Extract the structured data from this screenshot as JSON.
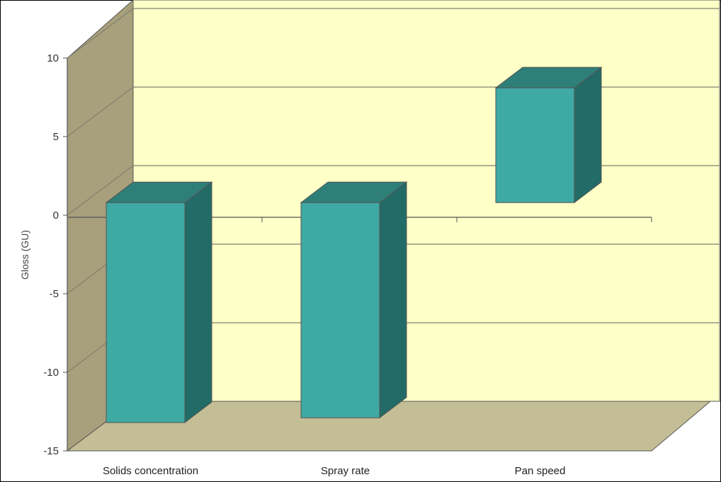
{
  "chart_data": {
    "type": "bar",
    "subtype": "3d-floating-bar",
    "ylabel": "Gloss (GU)",
    "xlabel": "",
    "categories": [
      "Solids concentration",
      "Spray rate",
      "Pan speed"
    ],
    "series": [
      {
        "bar_bottom": [
          -13.2,
          -12.9,
          0.8
        ],
        "bar_top": [
          0.8,
          0.8,
          8.1
        ]
      }
    ],
    "ylim": [
      -15,
      10
    ],
    "yticks": [
      -15,
      -10,
      -5,
      0,
      5,
      10
    ],
    "ytick_labels": [
      "-15",
      "-10",
      "-5",
      "0",
      "5",
      "10"
    ],
    "grid": true,
    "legend": "none",
    "colors": {
      "bar_front": "#3fa9a3",
      "bar_top": "#2f7f79",
      "bar_side": "#236b66",
      "back_wall": "#ffffc8",
      "side_wall": "#a8a07c",
      "floor": "#c4be96",
      "gridline": "#808070"
    }
  }
}
